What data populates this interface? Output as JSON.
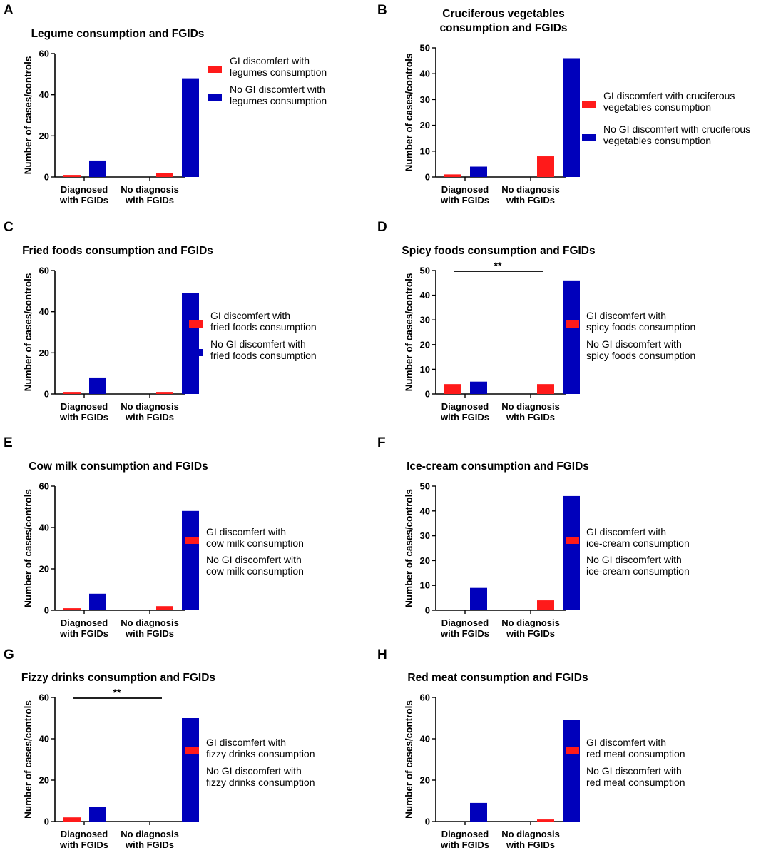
{
  "colors": {
    "series_gi": "#ff1a1a",
    "series_no_gi": "#0000bb",
    "axis": "#000000"
  },
  "chart_data": [
    {
      "panel": "A",
      "type": "bar",
      "title_lines": [
        "Legume consumption and FGIDs"
      ],
      "ylabel": "Number of cases/controls",
      "ylim": [
        0,
        60
      ],
      "yticks": [
        0,
        20,
        40,
        60
      ],
      "categories": [
        [
          "Diagnosed",
          "with FGIDs"
        ],
        [
          "No diagnosis",
          "with FGIDs"
        ]
      ],
      "series": [
        {
          "name_lines": [
            "GI discomfert with",
            "legumes consumption"
          ],
          "values": [
            1,
            2
          ]
        },
        {
          "name_lines": [
            "No GI discomfert with",
            "legumes consumption"
          ],
          "values": [
            8,
            48
          ]
        }
      ],
      "significance": null
    },
    {
      "panel": "B",
      "type": "bar",
      "title_lines": [
        "Cruciferous vegetables",
        "consumption and FGIDs"
      ],
      "ylabel": "Number of cases/controls",
      "ylim": [
        0,
        50
      ],
      "yticks": [
        0,
        10,
        20,
        30,
        40,
        50
      ],
      "categories": [
        [
          "Diagnosed",
          "with FGIDs"
        ],
        [
          "No diagnosis",
          "with FGIDs"
        ]
      ],
      "series": [
        {
          "name_lines": [
            "GI discomfert with cruciferous",
            "vegetables consumption"
          ],
          "values": [
            1,
            8
          ]
        },
        {
          "name_lines": [
            "No GI discomfert with cruciferous",
            "vegetables consumption"
          ],
          "values": [
            4,
            46
          ]
        }
      ],
      "significance": null
    },
    {
      "panel": "C",
      "type": "bar",
      "title_lines": [
        "Fried foods consumption and FGIDs"
      ],
      "ylabel": "Number of cases/controls",
      "ylim": [
        0,
        60
      ],
      "yticks": [
        0,
        20,
        40,
        60
      ],
      "categories": [
        [
          "Diagnosed",
          "with FGIDs"
        ],
        [
          "No diagnosis",
          "with FGIDs"
        ]
      ],
      "series": [
        {
          "name_lines": [
            "GI discomfert with",
            "fried foods consumption"
          ],
          "values": [
            1,
            1
          ]
        },
        {
          "name_lines": [
            "No GI discomfert with",
            "fried foods consumption"
          ],
          "values": [
            8,
            49
          ]
        }
      ],
      "significance": null
    },
    {
      "panel": "D",
      "type": "bar",
      "title_lines": [
        "Spicy foods consumption and FGIDs"
      ],
      "ylabel": "Number of cases/controls",
      "ylim": [
        0,
        50
      ],
      "yticks": [
        0,
        10,
        20,
        30,
        40,
        50
      ],
      "categories": [
        [
          "Diagnosed",
          "with FGIDs"
        ],
        [
          "No diagnosis",
          "with FGIDs"
        ]
      ],
      "series": [
        {
          "name_lines": [
            "GI discomfert with",
            "spicy foods consumption"
          ],
          "values": [
            4,
            4
          ]
        },
        {
          "name_lines": [
            "No GI discomfert with",
            "spicy foods consumption"
          ],
          "values": [
            5,
            46
          ]
        }
      ],
      "significance": "**"
    },
    {
      "panel": "E",
      "type": "bar",
      "title_lines": [
        "Cow milk consumption and FGIDs"
      ],
      "ylabel": "Number of cases/controls",
      "ylim": [
        0,
        60
      ],
      "yticks": [
        0,
        20,
        40,
        60
      ],
      "categories": [
        [
          "Diagnosed",
          "with FGIDs"
        ],
        [
          "No diagnosis",
          "with FGIDs"
        ]
      ],
      "series": [
        {
          "name_lines": [
            "GI discomfert with",
            "cow milk consumption"
          ],
          "values": [
            1,
            2
          ]
        },
        {
          "name_lines": [
            "No GI discomfert with",
            "cow milk consumption"
          ],
          "values": [
            8,
            48
          ]
        }
      ],
      "significance": null
    },
    {
      "panel": "F",
      "type": "bar",
      "title_lines": [
        "Ice-cream consumption and FGIDs"
      ],
      "ylabel": "Number of cases/controls",
      "ylim": [
        0,
        50
      ],
      "yticks": [
        0,
        10,
        20,
        30,
        40,
        50
      ],
      "categories": [
        [
          "Diagnosed",
          "with FGIDs"
        ],
        [
          "No diagnosis",
          "with FGIDs"
        ]
      ],
      "series": [
        {
          "name_lines": [
            "GI discomfert with",
            "ice-cream consumption"
          ],
          "values": [
            0,
            4
          ]
        },
        {
          "name_lines": [
            "No GI discomfert with",
            "ice-cream consumption"
          ],
          "values": [
            9,
            46
          ]
        }
      ],
      "significance": null
    },
    {
      "panel": "G",
      "type": "bar",
      "title_lines": [
        "Fizzy drinks consumption and FGIDs"
      ],
      "ylabel": "Number of cases/controls",
      "ylim": [
        0,
        60
      ],
      "yticks": [
        0,
        20,
        40,
        60
      ],
      "categories": [
        [
          "Diagnosed",
          "with FGIDs"
        ],
        [
          "No diagnosis",
          "with FGIDs"
        ]
      ],
      "series": [
        {
          "name_lines": [
            "GI discomfert with",
            "fizzy drinks consumption"
          ],
          "values": [
            2,
            0
          ]
        },
        {
          "name_lines": [
            "No GI discomfert with",
            "fizzy drinks consumption"
          ],
          "values": [
            7,
            50
          ]
        }
      ],
      "significance": "**"
    },
    {
      "panel": "H",
      "type": "bar",
      "title_lines": [
        "Red meat consumption and FGIDs"
      ],
      "ylabel": "Number of cases/controls",
      "ylim": [
        0,
        60
      ],
      "yticks": [
        0,
        20,
        40,
        60
      ],
      "categories": [
        [
          "Diagnosed",
          "with FGIDs"
        ],
        [
          "No diagnosis",
          "with FGIDs"
        ]
      ],
      "series": [
        {
          "name_lines": [
            "GI discomfert with",
            "red meat consumption"
          ],
          "values": [
            0,
            1
          ]
        },
        {
          "name_lines": [
            "No GI discomfert with",
            "red meat consumption"
          ],
          "values": [
            9,
            49
          ]
        }
      ],
      "significance": null
    }
  ]
}
